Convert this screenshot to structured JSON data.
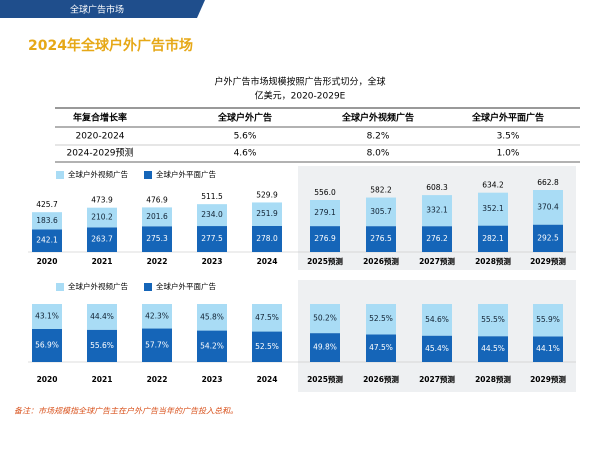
{
  "header": "全球广告市场",
  "page_title": "2024年全球户外广告市场",
  "table": {
    "title": [
      "户外广告市场规模按照广告形式切分，全球",
      "亿美元，2020-2029E"
    ],
    "header": [
      "年复合增长率",
      "全球户外广告",
      "全球户外视频广告",
      "全球户外平面广告"
    ],
    "rows": [
      [
        "2020-2024",
        "5.6%",
        "8.2%",
        "3.5%"
      ],
      [
        "2024-2029预测",
        "4.6%",
        "8.0%",
        "1.0%"
      ]
    ]
  },
  "chart_data": [
    {
      "type": "stacked-bar",
      "categories": [
        "2020",
        "2021",
        "2022",
        "2023",
        "2024",
        "2025预测",
        "2026预测",
        "2027预测",
        "2028预测",
        "2029预测"
      ],
      "series": [
        {
          "name": "全球户外平面广告",
          "color": "#1565b8",
          "values": [
            242.1,
            263.7,
            275.3,
            277.5,
            278.0,
            276.9,
            276.5,
            276.2,
            282.1,
            292.5
          ],
          "value_labels": [
            "242.1",
            "263.7",
            "275.3",
            "277.5",
            "278.0",
            "276.9",
            "276.5",
            "276.2",
            "282.1",
            "292.5"
          ]
        },
        {
          "name": "全球户外视频广告",
          "color": "#a9dcf5",
          "values": [
            183.6,
            210.2,
            201.6,
            234.0,
            251.9,
            279.1,
            305.7,
            332.1,
            352.1,
            370.4
          ],
          "value_labels": [
            "183.6",
            "210.2",
            "201.6",
            "234.0",
            "251.9",
            "279.1",
            "305.7",
            "332.1",
            "352.1",
            "370.4"
          ]
        }
      ],
      "totals": [
        425.7,
        473.9,
        476.9,
        511.5,
        529.9,
        556.0,
        582.2,
        608.3,
        634.2,
        662.8
      ],
      "total_labels": [
        "425.7",
        "473.9",
        "476.9",
        "511.5",
        "529.9",
        "556.0",
        "582.2",
        "608.3",
        "634.2",
        "662.8"
      ]
    },
    {
      "type": "stacked-bar",
      "categories": [
        "2020",
        "2021",
        "2022",
        "2023",
        "2024",
        "2025预测",
        "2026预测",
        "2027预测",
        "2028预测",
        "2029预测"
      ],
      "series": [
        {
          "name": "全球户外平面广告",
          "color": "#1565b8",
          "values": [
            56.9,
            55.6,
            57.7,
            54.2,
            52.5,
            49.8,
            47.5,
            45.4,
            44.5,
            44.1
          ],
          "value_labels": [
            "56.9%",
            "55.6%",
            "57.7%",
            "54.2%",
            "52.5%",
            "49.8%",
            "47.5%",
            "45.4%",
            "44.5%",
            "44.1%"
          ]
        },
        {
          "name": "全球户外视频广告",
          "color": "#a9dcf5",
          "values": [
            43.1,
            44.4,
            42.3,
            45.8,
            47.5,
            50.2,
            52.5,
            54.6,
            55.5,
            55.9
          ],
          "value_labels": [
            "43.1%",
            "44.4%",
            "42.3%",
            "45.8%",
            "47.5%",
            "50.2%",
            "52.5%",
            "54.6%",
            "55.5%",
            "55.9%"
          ]
        }
      ]
    }
  ],
  "note": "备注：市场规模指全球广告主在户外广告当年的广告投入总和。"
}
